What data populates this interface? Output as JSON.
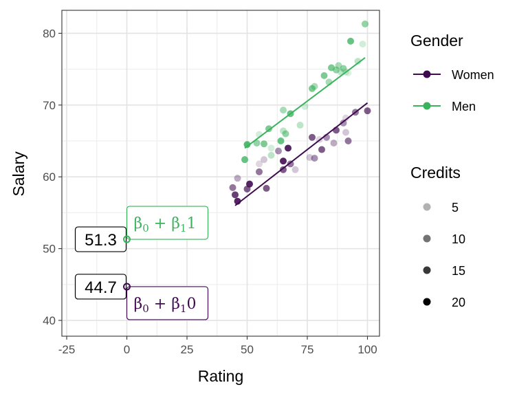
{
  "chart_data": {
    "type": "scatter",
    "xlabel": "Rating",
    "ylabel": "Salary",
    "xlim": [
      -27,
      105
    ],
    "ylim": [
      37.8,
      83.2
    ],
    "x_ticks": [
      -25,
      0,
      25,
      50,
      75,
      100
    ],
    "x_tick_labels": [
      "-25",
      "0",
      "25",
      "50",
      "75",
      "100"
    ],
    "y_ticks": [
      40,
      50,
      60,
      70,
      80
    ],
    "y_tick_labels": [
      "40",
      "50",
      "60",
      "70",
      "80"
    ],
    "grid": true,
    "legend": {
      "gender_title": "Gender",
      "gender_items": [
        {
          "label": "Women",
          "color": "#3f0a4f"
        },
        {
          "label": "Men",
          "color": "#3bb25e"
        }
      ],
      "credits_title": "Credits",
      "credits_items": [
        {
          "label": "5",
          "opacity": 0.3
        },
        {
          "label": "10",
          "opacity": 0.55
        },
        {
          "label": "15",
          "opacity": 0.78
        },
        {
          "label": "20",
          "opacity": 1.0
        }
      ]
    },
    "series": [
      {
        "name": "Women",
        "color": "#3f0a4f",
        "line": {
          "x": [
            45,
            100
          ],
          "y": [
            56.0,
            70.3
          ]
        },
        "intercept": 44.7,
        "points": [
          {
            "x": 44,
            "y": 58.5,
            "credits": 12
          },
          {
            "x": 45,
            "y": 57.5,
            "credits": 16
          },
          {
            "x": 46,
            "y": 56.6,
            "credits": 18
          },
          {
            "x": 46,
            "y": 59.8,
            "credits": 8
          },
          {
            "x": 50,
            "y": 58.3,
            "credits": 14
          },
          {
            "x": 51,
            "y": 59.0,
            "credits": 18
          },
          {
            "x": 55,
            "y": 60.7,
            "credits": 12
          },
          {
            "x": 55,
            "y": 61.8,
            "credits": 5
          },
          {
            "x": 57,
            "y": 62.4,
            "credits": 6
          },
          {
            "x": 58,
            "y": 58.4,
            "credits": 14
          },
          {
            "x": 63,
            "y": 63.6,
            "credits": 10
          },
          {
            "x": 65,
            "y": 62.2,
            "credits": 18
          },
          {
            "x": 65,
            "y": 61.0,
            "credits": 14
          },
          {
            "x": 67,
            "y": 64.0,
            "credits": 18
          },
          {
            "x": 68,
            "y": 61.8,
            "credits": 12
          },
          {
            "x": 70,
            "y": 61.0,
            "credits": 6
          },
          {
            "x": 76,
            "y": 62.7,
            "credits": 6
          },
          {
            "x": 77,
            "y": 65.5,
            "credits": 14
          },
          {
            "x": 78,
            "y": 62.6,
            "credits": 10
          },
          {
            "x": 81,
            "y": 63.8,
            "credits": 14
          },
          {
            "x": 83,
            "y": 65.5,
            "credits": 10
          },
          {
            "x": 86,
            "y": 64.7,
            "credits": 8
          },
          {
            "x": 87,
            "y": 66.5,
            "credits": 14
          },
          {
            "x": 90,
            "y": 67.5,
            "credits": 10
          },
          {
            "x": 91,
            "y": 66.2,
            "credits": 6
          },
          {
            "x": 91,
            "y": 68.2,
            "credits": 5
          },
          {
            "x": 92,
            "y": 65.0,
            "credits": 12
          },
          {
            "x": 95,
            "y": 69.0,
            "credits": 12
          },
          {
            "x": 100,
            "y": 69.2,
            "credits": 14
          },
          {
            "x": 80,
            "y": 65.2,
            "credits": 5
          }
        ]
      },
      {
        "name": "Men",
        "color": "#3bb25e",
        "line": {
          "x": [
            49,
            99
          ],
          "y": [
            64.0,
            76.6
          ]
        },
        "intercept": 51.3,
        "points": [
          {
            "x": 49,
            "y": 62.4,
            "credits": 16
          },
          {
            "x": 50,
            "y": 64.5,
            "credits": 18
          },
          {
            "x": 54,
            "y": 64.7,
            "credits": 12
          },
          {
            "x": 55,
            "y": 65.9,
            "credits": 6
          },
          {
            "x": 57,
            "y": 64.6,
            "credits": 14
          },
          {
            "x": 59,
            "y": 66.7,
            "credits": 14
          },
          {
            "x": 60,
            "y": 64.0,
            "credits": 6
          },
          {
            "x": 60,
            "y": 63.0,
            "credits": 8
          },
          {
            "x": 64,
            "y": 65.0,
            "credits": 16
          },
          {
            "x": 65,
            "y": 66.4,
            "credits": 8
          },
          {
            "x": 65,
            "y": 69.3,
            "credits": 10
          },
          {
            "x": 66,
            "y": 66.0,
            "credits": 12
          },
          {
            "x": 68,
            "y": 68.8,
            "credits": 16
          },
          {
            "x": 72,
            "y": 67.2,
            "credits": 8
          },
          {
            "x": 74,
            "y": 69.8,
            "credits": 6
          },
          {
            "x": 77,
            "y": 72.3,
            "credits": 14
          },
          {
            "x": 78,
            "y": 72.6,
            "credits": 10
          },
          {
            "x": 82,
            "y": 74.1,
            "credits": 14
          },
          {
            "x": 84,
            "y": 73.2,
            "credits": 10
          },
          {
            "x": 85,
            "y": 75.2,
            "credits": 14
          },
          {
            "x": 87,
            "y": 74.9,
            "credits": 12
          },
          {
            "x": 88,
            "y": 75.5,
            "credits": 10
          },
          {
            "x": 89,
            "y": 74.6,
            "credits": 8
          },
          {
            "x": 90,
            "y": 75.1,
            "credits": 12
          },
          {
            "x": 91,
            "y": 74.6,
            "credits": 6
          },
          {
            "x": 93,
            "y": 78.9,
            "credits": 16
          },
          {
            "x": 96,
            "y": 76.1,
            "credits": 8
          },
          {
            "x": 98,
            "y": 78.5,
            "credits": 6
          },
          {
            "x": 99,
            "y": 81.3,
            "credits": 12
          },
          {
            "x": 92,
            "y": 74.5,
            "credits": 5
          }
        ]
      }
    ],
    "annotations": [
      {
        "label": "51.3",
        "x": 0,
        "y": 51.3,
        "equation": "β0 + β1 1",
        "color": "#3bb25e"
      },
      {
        "label": "44.7",
        "x": 0,
        "y": 44.7,
        "equation": "β0 + β1 0",
        "color": "#3f0a4f"
      }
    ]
  }
}
